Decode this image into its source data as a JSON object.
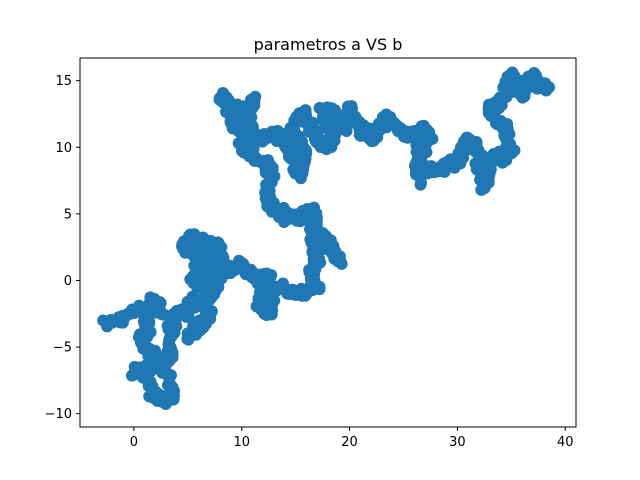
{
  "chart_data": {
    "type": "scatter",
    "title": "parametros a VS b",
    "xlabel": "",
    "ylabel": "",
    "xlim": [
      -5,
      41
    ],
    "ylim": [
      -11,
      16.7
    ],
    "xticks": [
      0,
      10,
      20,
      30,
      40
    ],
    "yticks": [
      -10,
      -5,
      0,
      5,
      10,
      15
    ],
    "grid": false,
    "marker_color": "#1f77b4",
    "waypoints": [
      [
        -2.5,
        -3.3
      ],
      [
        -1.0,
        -2.8
      ],
      [
        0.0,
        -2.2
      ],
      [
        1.5,
        -2.0
      ],
      [
        2.5,
        -2.5
      ],
      [
        2.0,
        -1.3
      ],
      [
        1.0,
        -2.5
      ],
      [
        1.5,
        -4.0
      ],
      [
        0.5,
        -4.5
      ],
      [
        1.5,
        -5.5
      ],
      [
        2.0,
        -6.0
      ],
      [
        1.0,
        -6.8
      ],
      [
        0.0,
        -6.8
      ],
      [
        1.5,
        -7.2
      ],
      [
        1.8,
        -8.5
      ],
      [
        2.5,
        -9.2
      ],
      [
        3.5,
        -8.8
      ],
      [
        3.2,
        -7.5
      ],
      [
        2.8,
        -6.0
      ],
      [
        3.5,
        -5.5
      ],
      [
        3.0,
        -4.5
      ],
      [
        3.5,
        -3.5
      ],
      [
        4.0,
        -2.5
      ],
      [
        5.0,
        -2.5
      ],
      [
        5.5,
        -1.5
      ],
      [
        6.5,
        -1.8
      ],
      [
        6.5,
        -3.0
      ],
      [
        5.5,
        -3.5
      ],
      [
        5.0,
        -4.2
      ],
      [
        6.5,
        -3.5
      ],
      [
        7.0,
        -2.5
      ],
      [
        6.5,
        -1.2
      ],
      [
        7.5,
        -0.8
      ],
      [
        7.5,
        0.5
      ],
      [
        7.0,
        1.5
      ],
      [
        6.0,
        1.0
      ],
      [
        5.5,
        0.0
      ],
      [
        6.2,
        -0.5
      ],
      [
        6.8,
        0.5
      ],
      [
        6.0,
        2.0
      ],
      [
        5.0,
        2.5
      ],
      [
        4.5,
        2.3
      ],
      [
        5.2,
        3.2
      ],
      [
        6.2,
        3.0
      ],
      [
        7.0,
        2.5
      ],
      [
        7.8,
        2.8
      ],
      [
        8.0,
        1.5
      ],
      [
        7.5,
        0.2
      ],
      [
        8.5,
        0.5
      ],
      [
        9.5,
        1.2
      ],
      [
        10.5,
        0.8
      ],
      [
        11.0,
        0.5
      ],
      [
        11.5,
        0.0
      ],
      [
        12.5,
        0.5
      ],
      [
        12.0,
        -1.0
      ],
      [
        11.5,
        -2.0
      ],
      [
        12.5,
        -2.5
      ],
      [
        13.0,
        -1.5
      ],
      [
        12.0,
        -0.5
      ],
      [
        13.0,
        -0.8
      ],
      [
        14.0,
        -0.5
      ],
      [
        15.0,
        -1.0
      ],
      [
        16.0,
        -0.8
      ],
      [
        17.0,
        -0.5
      ],
      [
        16.5,
        0.5
      ],
      [
        17.0,
        1.5
      ],
      [
        16.5,
        2.5
      ],
      [
        17.0,
        3.5
      ],
      [
        18.0,
        3.0
      ],
      [
        18.5,
        2.0
      ],
      [
        19.0,
        1.5
      ],
      [
        18.0,
        2.5
      ],
      [
        17.0,
        3.0
      ],
      [
        16.5,
        4.0
      ],
      [
        16.8,
        5.2
      ],
      [
        16.0,
        5.0
      ],
      [
        15.0,
        4.5
      ],
      [
        14.0,
        4.8
      ],
      [
        13.0,
        5.5
      ],
      [
        12.5,
        6.0
      ],
      [
        12.5,
        7.0
      ],
      [
        13.0,
        8.0
      ],
      [
        12.0,
        8.8
      ],
      [
        11.0,
        9.5
      ],
      [
        10.0,
        10.0
      ],
      [
        10.5,
        11.0
      ],
      [
        9.5,
        11.5
      ],
      [
        9.0,
        12.5
      ],
      [
        8.5,
        13.5
      ],
      [
        8.0,
        13.8
      ],
      [
        9.5,
        13.0
      ],
      [
        10.5,
        12.5
      ],
      [
        11.0,
        13.5
      ],
      [
        10.5,
        12.0
      ],
      [
        11.0,
        11.0
      ],
      [
        12.0,
        10.5
      ],
      [
        13.0,
        11.0
      ],
      [
        14.0,
        10.5
      ],
      [
        14.5,
        9.5
      ],
      [
        15.0,
        8.5
      ],
      [
        15.5,
        8.0
      ],
      [
        16.0,
        9.0
      ],
      [
        15.5,
        10.0
      ],
      [
        14.5,
        11.0
      ],
      [
        15.0,
        12.0
      ],
      [
        16.0,
        12.5
      ],
      [
        16.5,
        11.5
      ],
      [
        17.0,
        10.5
      ],
      [
        18.0,
        10.0
      ],
      [
        18.5,
        11.0
      ],
      [
        18.0,
        12.0
      ],
      [
        17.5,
        13.0
      ],
      [
        18.5,
        12.5
      ],
      [
        19.5,
        11.5
      ],
      [
        20.0,
        13.0
      ],
      [
        20.5,
        12.0
      ],
      [
        21.0,
        11.0
      ],
      [
        21.5,
        11.5
      ],
      [
        22.0,
        10.5
      ],
      [
        23.0,
        11.5
      ],
      [
        23.5,
        12.5
      ],
      [
        24.5,
        11.5
      ],
      [
        25.0,
        11.0
      ],
      [
        26.0,
        11.0
      ],
      [
        26.5,
        10.5
      ],
      [
        27.0,
        11.5
      ],
      [
        27.5,
        10.5
      ],
      [
        26.5,
        9.5
      ],
      [
        26.0,
        8.5
      ],
      [
        26.5,
        7.5
      ],
      [
        27.5,
        8.5
      ],
      [
        28.5,
        8.0
      ],
      [
        29.0,
        9.0
      ],
      [
        30.0,
        8.5
      ],
      [
        30.5,
        10.0
      ],
      [
        31.0,
        10.5
      ],
      [
        32.0,
        10.0
      ],
      [
        32.0,
        8.5
      ],
      [
        32.5,
        7.0
      ],
      [
        33.0,
        8.0
      ],
      [
        33.5,
        9.5
      ],
      [
        34.5,
        9.0
      ],
      [
        35.0,
        10.0
      ],
      [
        34.5,
        11.5
      ],
      [
        33.5,
        12.0
      ],
      [
        33.0,
        13.0
      ],
      [
        34.0,
        13.5
      ],
      [
        34.5,
        14.5
      ],
      [
        35.0,
        15.5
      ],
      [
        35.5,
        14.5
      ],
      [
        36.0,
        14.0
      ],
      [
        36.5,
        15.0
      ],
      [
        37.0,
        15.5
      ],
      [
        37.5,
        14.5
      ],
      [
        38.5,
        14.5
      ]
    ]
  }
}
